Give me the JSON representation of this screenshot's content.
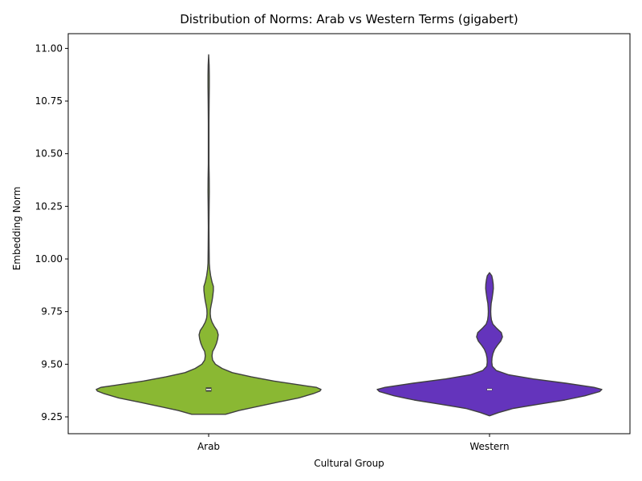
{
  "chart_data": {
    "type": "violin",
    "title": "Distribution of Norms: Arab vs Western Terms (gigabert)",
    "xlabel": "Cultural Group",
    "ylabel": "Embedding Norm",
    "ylim": [
      9.17,
      11.07
    ],
    "yticks": [
      9.25,
      9.5,
      9.75,
      10.0,
      10.25,
      10.5,
      10.75,
      11.0
    ],
    "ytick_labels": [
      "9.25",
      "9.50",
      "9.75",
      "10.00",
      "10.25",
      "10.50",
      "10.75",
      "11.00"
    ],
    "categories": [
      "Arab",
      "Western"
    ],
    "grid": false,
    "series": [
      {
        "category": "Arab",
        "color": "#8ab833",
        "median": 9.38,
        "q1": 9.37,
        "q3": 9.39,
        "profile": [
          [
            9.262,
            0.15
          ],
          [
            9.28,
            0.27
          ],
          [
            9.3,
            0.44
          ],
          [
            9.32,
            0.62
          ],
          [
            9.34,
            0.8
          ],
          [
            9.36,
            0.93
          ],
          [
            9.372,
            0.99
          ],
          [
            9.38,
            1.0
          ],
          [
            9.39,
            0.96
          ],
          [
            9.4,
            0.83
          ],
          [
            9.42,
            0.58
          ],
          [
            9.44,
            0.38
          ],
          [
            9.46,
            0.21
          ],
          [
            9.48,
            0.12
          ],
          [
            9.5,
            0.06
          ],
          [
            9.52,
            0.035
          ],
          [
            9.54,
            0.03
          ],
          [
            9.56,
            0.035
          ],
          [
            9.58,
            0.055
          ],
          [
            9.6,
            0.07
          ],
          [
            9.62,
            0.08
          ],
          [
            9.64,
            0.085
          ],
          [
            9.66,
            0.075
          ],
          [
            9.68,
            0.05
          ],
          [
            9.7,
            0.03
          ],
          [
            9.72,
            0.018
          ],
          [
            9.74,
            0.014
          ],
          [
            9.76,
            0.016
          ],
          [
            9.78,
            0.022
          ],
          [
            9.8,
            0.03
          ],
          [
            9.82,
            0.036
          ],
          [
            9.85,
            0.042
          ],
          [
            9.87,
            0.042
          ],
          [
            9.89,
            0.03
          ],
          [
            9.92,
            0.018
          ],
          [
            9.95,
            0.01
          ],
          [
            9.98,
            0.006
          ],
          [
            10.05,
            0.004
          ],
          [
            10.15,
            0.003
          ],
          [
            10.25,
            0.004
          ],
          [
            10.32,
            0.006
          ],
          [
            10.38,
            0.005
          ],
          [
            10.45,
            0.003
          ],
          [
            10.55,
            0.003
          ],
          [
            10.65,
            0.003
          ],
          [
            10.75,
            0.004
          ],
          [
            10.82,
            0.006
          ],
          [
            10.87,
            0.006
          ],
          [
            10.92,
            0.004
          ],
          [
            10.97,
            0.0
          ]
        ]
      },
      {
        "category": "Western",
        "color": "#6434bc",
        "median": 9.38,
        "q1": 9.375,
        "q3": 9.385,
        "profile": [
          [
            9.255,
            0.0
          ],
          [
            9.27,
            0.08
          ],
          [
            9.29,
            0.21
          ],
          [
            9.31,
            0.44
          ],
          [
            9.33,
            0.67
          ],
          [
            9.35,
            0.85
          ],
          [
            9.37,
            0.98
          ],
          [
            9.38,
            1.0
          ],
          [
            9.39,
            0.93
          ],
          [
            9.41,
            0.68
          ],
          [
            9.43,
            0.39
          ],
          [
            9.45,
            0.17
          ],
          [
            9.47,
            0.06
          ],
          [
            9.49,
            0.025
          ],
          [
            9.51,
            0.02
          ],
          [
            9.53,
            0.022
          ],
          [
            9.55,
            0.03
          ],
          [
            9.57,
            0.045
          ],
          [
            9.59,
            0.07
          ],
          [
            9.61,
            0.1
          ],
          [
            9.63,
            0.115
          ],
          [
            9.65,
            0.105
          ],
          [
            9.67,
            0.065
          ],
          [
            9.69,
            0.03
          ],
          [
            9.71,
            0.017
          ],
          [
            9.73,
            0.012
          ],
          [
            9.75,
            0.011
          ],
          [
            9.77,
            0.012
          ],
          [
            9.79,
            0.015
          ],
          [
            9.81,
            0.022
          ],
          [
            9.84,
            0.03
          ],
          [
            9.86,
            0.034
          ],
          [
            9.88,
            0.033
          ],
          [
            9.9,
            0.028
          ],
          [
            9.92,
            0.02
          ],
          [
            9.935,
            0.0
          ]
        ]
      }
    ]
  }
}
